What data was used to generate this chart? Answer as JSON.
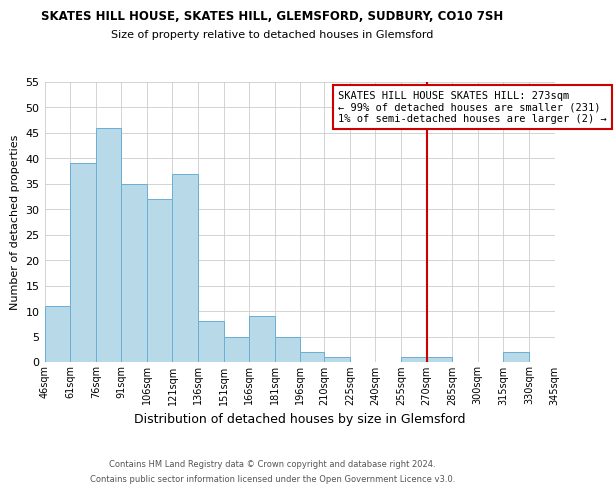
{
  "title": "SKATES HILL HOUSE, SKATES HILL, GLEMSFORD, SUDBURY, CO10 7SH",
  "subtitle": "Size of property relative to detached houses in Glemsford",
  "xlabel": "Distribution of detached houses by size in Glemsford",
  "ylabel": "Number of detached properties",
  "bar_color": "#b8d9e8",
  "bar_edge_color": "#6aaed6",
  "background_color": "#ffffff",
  "grid_color": "#cccccc",
  "bin_edges": [
    46,
    61,
    76,
    91,
    106,
    121,
    136,
    151,
    166,
    181,
    196,
    210,
    225,
    240,
    255,
    270,
    285,
    300,
    315,
    330,
    345
  ],
  "bin_labels": [
    "46sqm",
    "61sqm",
    "76sqm",
    "91sqm",
    "106sqm",
    "121sqm",
    "136sqm",
    "151sqm",
    "166sqm",
    "181sqm",
    "196sqm",
    "210sqm",
    "225sqm",
    "240sqm",
    "255sqm",
    "270sqm",
    "285sqm",
    "300sqm",
    "315sqm",
    "330sqm",
    "345sqm"
  ],
  "counts": [
    11,
    39,
    46,
    35,
    32,
    37,
    8,
    5,
    9,
    5,
    2,
    1,
    0,
    0,
    1,
    1,
    0,
    0,
    2,
    0
  ],
  "ylim": [
    0,
    55
  ],
  "yticks": [
    0,
    5,
    10,
    15,
    20,
    25,
    30,
    35,
    40,
    45,
    50,
    55
  ],
  "vline_x": 270,
  "vline_color": "#cc0000",
  "annotation_title": "SKATES HILL HOUSE SKATES HILL: 273sqm",
  "annotation_line1": "← 99% of detached houses are smaller (231)",
  "annotation_line2": "1% of semi-detached houses are larger (2) →",
  "annotation_box_color": "#ffffff",
  "annotation_border_color": "#cc0000",
  "footer_line1": "Contains HM Land Registry data © Crown copyright and database right 2024.",
  "footer_line2": "Contains public sector information licensed under the Open Government Licence v3.0."
}
